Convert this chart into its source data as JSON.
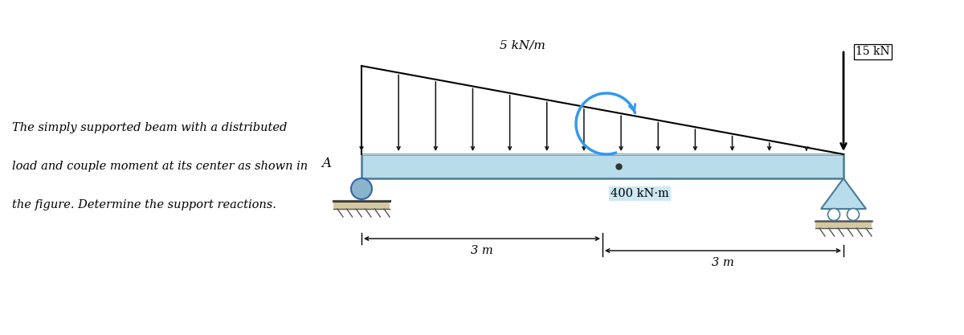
{
  "bg_color": "#ffffff",
  "beam_color": "#b8dcea",
  "beam_border_color": "#4a7a95",
  "description_lines": [
    "The simply supported beam with a distributed",
    "load and couple moment at its center as shown in",
    "the figure. Determine the support reactions."
  ],
  "label_5kNm": "5 kN/m",
  "label_15kN": "15 kN",
  "label_400kNm": "400 kN·m",
  "label_3m_left": "3 m",
  "label_3m_right": "3 m",
  "label_A": "A",
  "num_arrows": 14,
  "arrow_color": "#111111",
  "moment_color": "#3399ee",
  "dim_color": "#444444",
  "support_A_color": "#aaccdd",
  "support_B_color": "#aaccdd"
}
